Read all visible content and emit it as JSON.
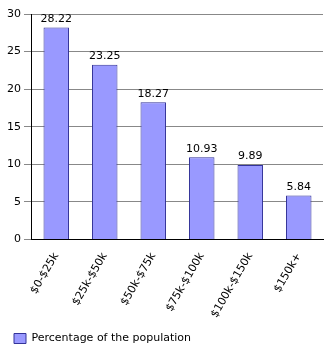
{
  "chart_data": {
    "type": "bar",
    "categories": [
      "$0-$25k",
      "$25k-$50k",
      "$50k-$75k",
      "$75k-$100k",
      "$100k-$150k",
      "$150k+"
    ],
    "series": [
      {
        "name": "Percentage of the population",
        "color": "#9999ff",
        "values": [
          28.22,
          23.25,
          18.27,
          10.93,
          9.89,
          5.84
        ]
      }
    ],
    "ylim": [
      0,
      30
    ],
    "yticks": [
      0,
      5,
      10,
      15,
      20,
      25,
      30
    ],
    "grid": true,
    "legend": "bottom",
    "data_labels": true
  }
}
